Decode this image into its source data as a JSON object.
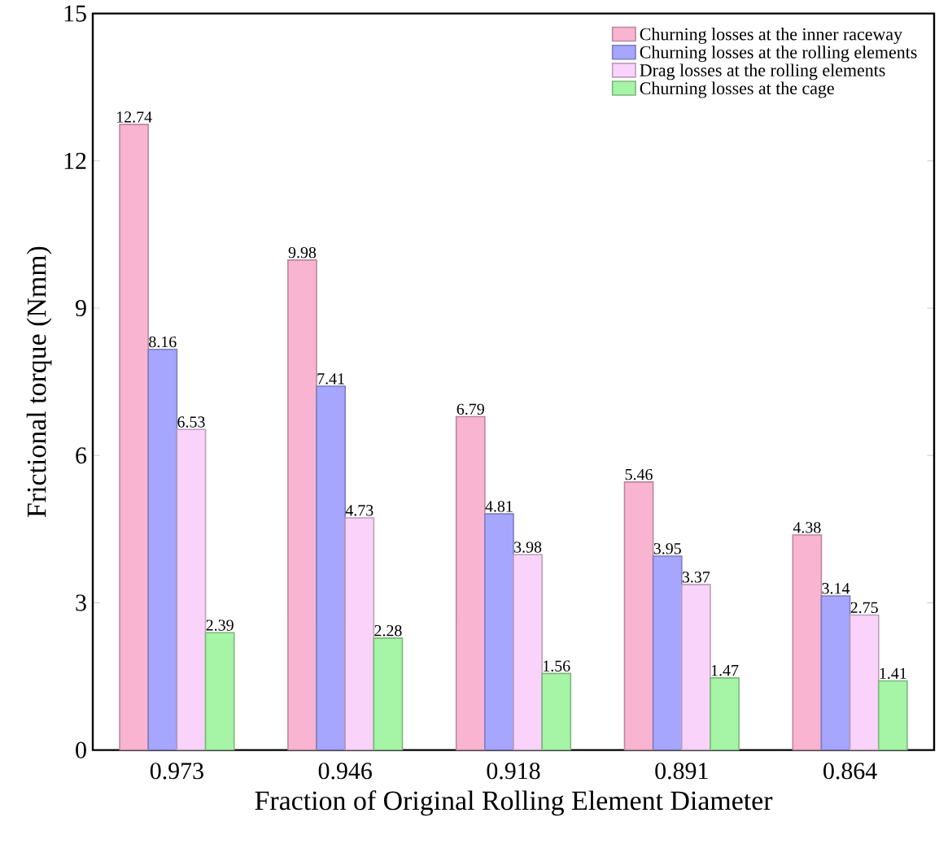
{
  "chart_data": {
    "type": "bar",
    "xlabel": "Fraction of Original Rolling Element Diameter",
    "ylabel": "Frictional torque (Nmm)",
    "categories": [
      "0.973",
      "0.946",
      "0.918",
      "0.891",
      "0.864"
    ],
    "series": [
      {
        "name": "Churning losses at the inner raceway",
        "color": "#f9b4d1",
        "values": [
          12.74,
          9.98,
          6.79,
          5.46,
          4.38
        ]
      },
      {
        "name": "Churning losses at the rolling elements",
        "color": "#a6a6ff",
        "values": [
          8.16,
          7.41,
          4.81,
          3.95,
          3.14
        ]
      },
      {
        "name": "Drag losses at the rolling elements",
        "color": "#f9d3f9",
        "values": [
          6.53,
          4.73,
          3.98,
          3.37,
          2.75
        ]
      },
      {
        "name": "Churning losses at the cage",
        "color": "#a6f4a6",
        "values": [
          2.39,
          2.28,
          1.56,
          1.47,
          1.41
        ]
      }
    ],
    "ylim": [
      0,
      15
    ],
    "yticks": [
      0,
      3,
      6,
      9,
      12,
      15
    ],
    "data_labels": true,
    "legend": "top right",
    "grid": false
  }
}
